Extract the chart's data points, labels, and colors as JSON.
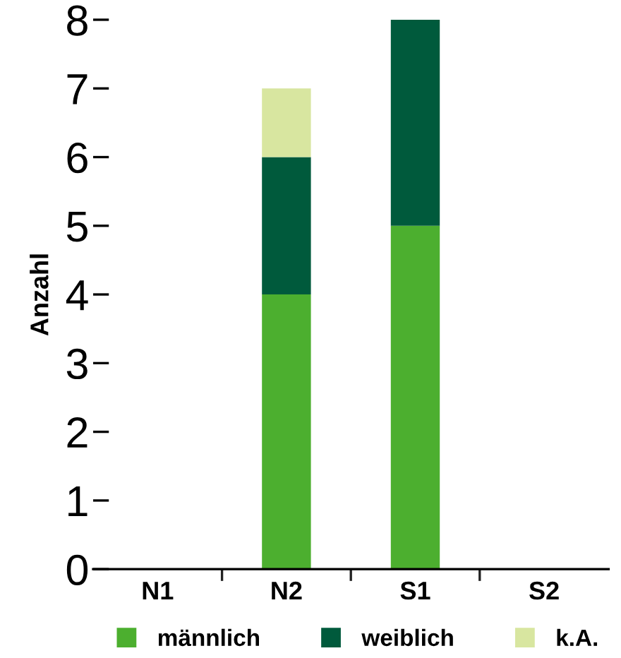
{
  "chart_data": {
    "type": "bar",
    "stacked": true,
    "ylabel": "Anzahl",
    "categories": [
      "N1",
      "N2",
      "S1",
      "S2"
    ],
    "series": [
      {
        "name": "männlich",
        "color": "#4caf2f",
        "values": [
          0,
          4,
          5,
          0
        ]
      },
      {
        "name": "weiblich",
        "color": "#005a3c",
        "values": [
          0,
          2,
          3,
          0
        ]
      },
      {
        "name": "k.A.",
        "color": "#d8e6a0",
        "values": [
          0,
          1,
          0,
          0
        ]
      }
    ],
    "ylim": [
      0,
      8
    ],
    "yticks": [
      0,
      1,
      2,
      3,
      4,
      5,
      6,
      7,
      8
    ],
    "grid": false,
    "legend": "bottom"
  }
}
